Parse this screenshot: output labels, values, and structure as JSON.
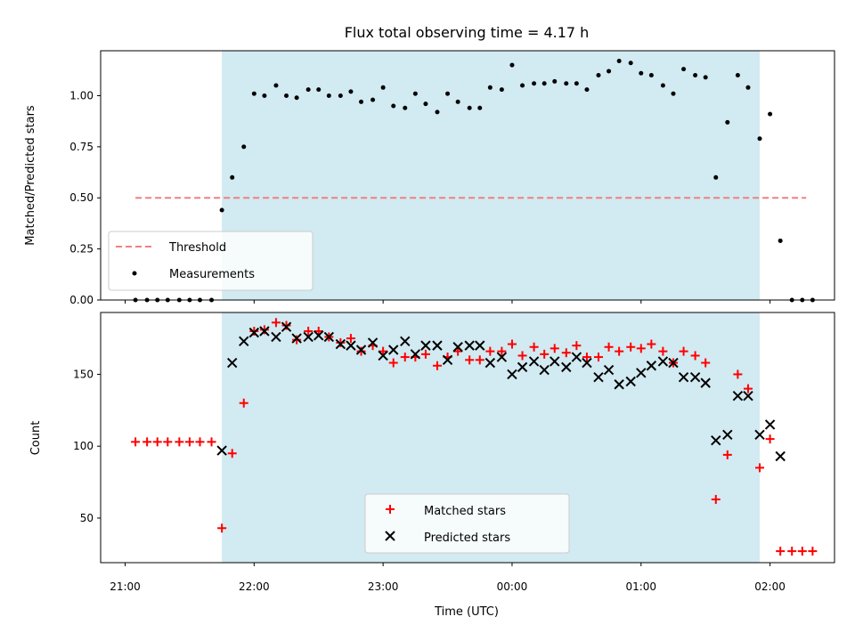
{
  "chart_data": [
    {
      "type": "scatter",
      "title": "Flux total observing time = 4.17 h",
      "xlabel": "",
      "ylabel": "Matched/Predicted stars",
      "x_unit": "hours since 21:00 UTC",
      "xlim": [
        -0.19,
        5.5
      ],
      "ylim": [
        0.0,
        1.22
      ],
      "yticks": [
        "0.00",
        "0.25",
        "0.50",
        "0.75",
        "1.00"
      ],
      "shaded_span": [
        0.75,
        4.92
      ],
      "shade_color": "#add8e6",
      "threshold": {
        "name": "Threshold",
        "value": 0.5,
        "x_range": [
          0.08,
          5.28
        ],
        "color": "#f08080"
      },
      "legend_position": "lower left",
      "series": [
        {
          "name": "Measurements",
          "color": "#000000",
          "points": [
            [
              0.08,
              0.0
            ],
            [
              0.17,
              0.0
            ],
            [
              0.25,
              0.0
            ],
            [
              0.33,
              0.0
            ],
            [
              0.42,
              0.0
            ],
            [
              0.5,
              0.0
            ],
            [
              0.58,
              0.0
            ],
            [
              0.67,
              0.0
            ],
            [
              0.75,
              0.44
            ],
            [
              0.83,
              0.6
            ],
            [
              0.92,
              0.75
            ],
            [
              1.0,
              1.01
            ],
            [
              1.08,
              1.0
            ],
            [
              1.17,
              1.05
            ],
            [
              1.25,
              1.0
            ],
            [
              1.33,
              0.99
            ],
            [
              1.42,
              1.03
            ],
            [
              1.5,
              1.03
            ],
            [
              1.58,
              1.0
            ],
            [
              1.67,
              1.0
            ],
            [
              1.75,
              1.02
            ],
            [
              1.83,
              0.97
            ],
            [
              1.92,
              0.98
            ],
            [
              2.0,
              1.04
            ],
            [
              2.08,
              0.95
            ],
            [
              2.17,
              0.94
            ],
            [
              2.25,
              1.01
            ],
            [
              2.33,
              0.96
            ],
            [
              2.42,
              0.92
            ],
            [
              2.5,
              1.01
            ],
            [
              2.58,
              0.97
            ],
            [
              2.67,
              0.94
            ],
            [
              2.75,
              0.94
            ],
            [
              2.83,
              1.04
            ],
            [
              2.92,
              1.03
            ],
            [
              3.0,
              1.15
            ],
            [
              3.08,
              1.05
            ],
            [
              3.17,
              1.06
            ],
            [
              3.25,
              1.06
            ],
            [
              3.33,
              1.07
            ],
            [
              3.42,
              1.06
            ],
            [
              3.5,
              1.06
            ],
            [
              3.58,
              1.03
            ],
            [
              3.67,
              1.1
            ],
            [
              3.75,
              1.12
            ],
            [
              3.83,
              1.17
            ],
            [
              3.92,
              1.16
            ],
            [
              4.0,
              1.11
            ],
            [
              4.08,
              1.1
            ],
            [
              4.17,
              1.05
            ],
            [
              4.25,
              1.01
            ],
            [
              4.33,
              1.13
            ],
            [
              4.42,
              1.1
            ],
            [
              4.5,
              1.09
            ],
            [
              4.58,
              0.6
            ],
            [
              4.67,
              0.87
            ],
            [
              4.75,
              1.1
            ],
            [
              4.83,
              1.04
            ],
            [
              4.92,
              0.79
            ],
            [
              5.0,
              0.91
            ],
            [
              5.08,
              0.29
            ],
            [
              5.17,
              0.0
            ],
            [
              5.25,
              0.0
            ],
            [
              5.33,
              0.0
            ]
          ]
        }
      ]
    },
    {
      "type": "scatter",
      "title": "",
      "xlabel": "Time (UTC)",
      "ylabel": "Count",
      "x_unit": "hours since 21:00 UTC",
      "xlim": [
        -0.19,
        5.5
      ],
      "ylim": [
        19.0,
        193.0
      ],
      "yticks": [
        "50",
        "100",
        "150"
      ],
      "xticks": [
        "21:00",
        "22:00",
        "23:00",
        "00:00",
        "01:00",
        "02:00"
      ],
      "xtick_values": [
        0,
        1,
        2,
        3,
        4,
        5
      ],
      "shaded_span": [
        0.75,
        4.92
      ],
      "shade_color": "#add8e6",
      "legend_position": "lower center",
      "series": [
        {
          "name": "Matched stars",
          "color": "#ff0000",
          "marker": "plus",
          "points": [
            [
              0.08,
              103
            ],
            [
              0.17,
              103
            ],
            [
              0.25,
              103
            ],
            [
              0.33,
              103
            ],
            [
              0.42,
              103
            ],
            [
              0.5,
              103
            ],
            [
              0.58,
              103
            ],
            [
              0.67,
              103
            ],
            [
              0.75,
              43
            ],
            [
              0.83,
              95
            ],
            [
              0.92,
              130
            ],
            [
              1.0,
              180
            ],
            [
              1.08,
              181
            ],
            [
              1.17,
              186
            ],
            [
              1.25,
              184
            ],
            [
              1.33,
              174
            ],
            [
              1.42,
              180
            ],
            [
              1.5,
              180
            ],
            [
              1.58,
              176
            ],
            [
              1.67,
              172
            ],
            [
              1.75,
              175
            ],
            [
              1.83,
              166
            ],
            [
              1.92,
              170
            ],
            [
              2.0,
              166
            ],
            [
              2.08,
              158
            ],
            [
              2.17,
              162
            ],
            [
              2.25,
              162
            ],
            [
              2.33,
              164
            ],
            [
              2.42,
              156
            ],
            [
              2.5,
              162
            ],
            [
              2.58,
              166
            ],
            [
              2.67,
              160
            ],
            [
              2.75,
              160
            ],
            [
              2.83,
              166
            ],
            [
              2.92,
              166
            ],
            [
              3.0,
              171
            ],
            [
              3.08,
              163
            ],
            [
              3.17,
              169
            ],
            [
              3.25,
              164
            ],
            [
              3.33,
              168
            ],
            [
              3.42,
              165
            ],
            [
              3.5,
              170
            ],
            [
              3.58,
              162
            ],
            [
              3.67,
              162
            ],
            [
              3.75,
              169
            ],
            [
              3.83,
              166
            ],
            [
              3.92,
              169
            ],
            [
              4.0,
              168
            ],
            [
              4.08,
              171
            ],
            [
              4.17,
              166
            ],
            [
              4.25,
              158
            ],
            [
              4.33,
              166
            ],
            [
              4.42,
              163
            ],
            [
              4.5,
              158
            ],
            [
              4.58,
              63
            ],
            [
              4.67,
              94
            ],
            [
              4.75,
              150
            ],
            [
              4.83,
              140
            ],
            [
              4.92,
              85
            ],
            [
              5.0,
              105
            ],
            [
              5.08,
              27
            ],
            [
              5.17,
              27
            ],
            [
              5.25,
              27
            ],
            [
              5.33,
              27
            ]
          ]
        },
        {
          "name": "Predicted stars",
          "color": "#000000",
          "marker": "x",
          "points": [
            [
              0.75,
              97
            ],
            [
              0.83,
              158
            ],
            [
              0.92,
              173
            ],
            [
              1.0,
              179
            ],
            [
              1.08,
              180
            ],
            [
              1.17,
              176
            ],
            [
              1.25,
              183
            ],
            [
              1.33,
              175
            ],
            [
              1.42,
              176
            ],
            [
              1.5,
              177
            ],
            [
              1.58,
              176
            ],
            [
              1.67,
              171
            ],
            [
              1.75,
              170
            ],
            [
              1.83,
              167
            ],
            [
              1.92,
              172
            ],
            [
              2.0,
              163
            ],
            [
              2.08,
              167
            ],
            [
              2.17,
              173
            ],
            [
              2.25,
              164
            ],
            [
              2.33,
              170
            ],
            [
              2.42,
              170
            ],
            [
              2.5,
              160
            ],
            [
              2.58,
              169
            ],
            [
              2.67,
              170
            ],
            [
              2.75,
              170
            ],
            [
              2.83,
              158
            ],
            [
              2.92,
              162
            ],
            [
              3.0,
              150
            ],
            [
              3.08,
              155
            ],
            [
              3.17,
              159
            ],
            [
              3.25,
              153
            ],
            [
              3.33,
              159
            ],
            [
              3.42,
              155
            ],
            [
              3.5,
              162
            ],
            [
              3.58,
              158
            ],
            [
              3.67,
              148
            ],
            [
              3.75,
              153
            ],
            [
              3.83,
              143
            ],
            [
              3.92,
              145
            ],
            [
              4.0,
              151
            ],
            [
              4.08,
              156
            ],
            [
              4.17,
              159
            ],
            [
              4.25,
              158
            ],
            [
              4.33,
              148
            ],
            [
              4.42,
              148
            ],
            [
              4.5,
              144
            ],
            [
              4.58,
              104
            ],
            [
              4.67,
              108
            ],
            [
              4.75,
              135
            ],
            [
              4.83,
              135
            ],
            [
              4.92,
              108
            ],
            [
              5.0,
              115
            ],
            [
              5.08,
              93
            ]
          ]
        }
      ]
    }
  ]
}
